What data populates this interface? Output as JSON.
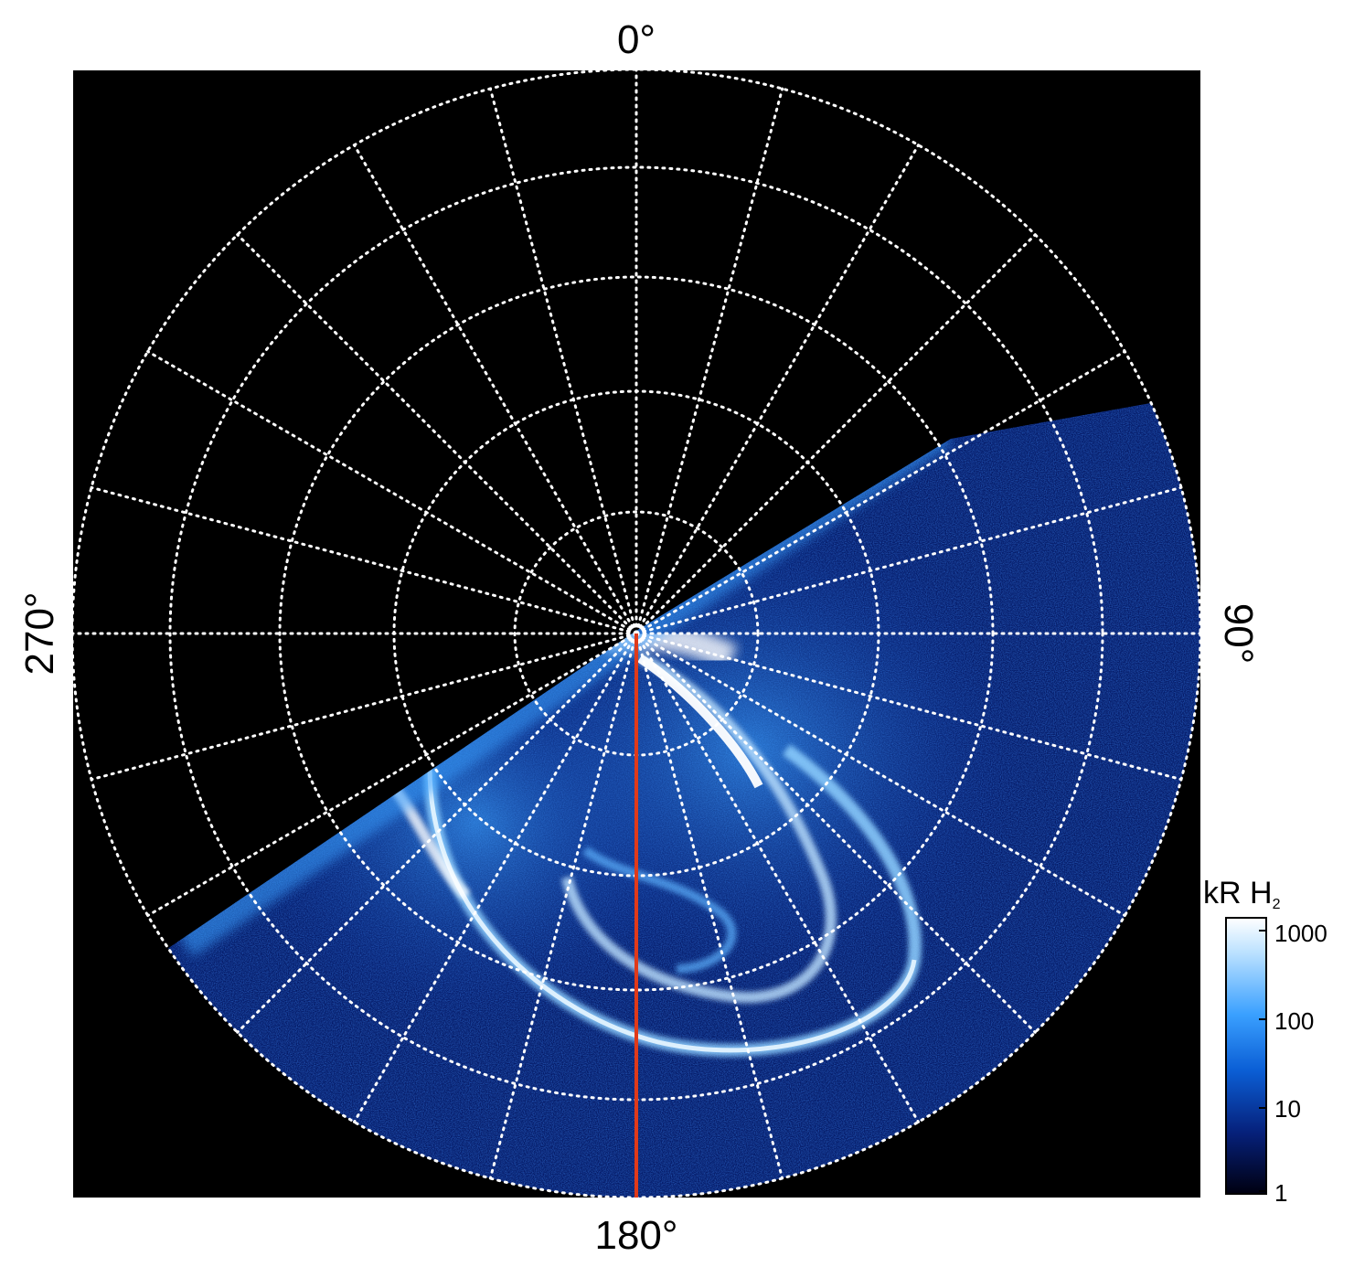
{
  "figure": {
    "labels": {
      "top": "0°",
      "bottom": "180°",
      "left": "270°",
      "right": "90°"
    },
    "colorbar": {
      "title": "kR H",
      "title_subscript": "2",
      "scale": "log",
      "ticks": [
        "1000",
        "100",
        "10",
        "1"
      ],
      "colors": [
        "#ffffff",
        "#bfe3ff",
        "#3aa0ff",
        "#0b5fd6",
        "#06207a",
        "#000010"
      ]
    },
    "grid": {
      "style": "dotted",
      "color": "#ffffff",
      "meridian_step_deg": 15,
      "circles": 5
    },
    "colors": {
      "background": "#000000",
      "central_line": "#e03a1a",
      "aurora_bright": "#ffffff",
      "aurora_mid": "#2f8fff",
      "aurora_dim": "#0a2f9a"
    }
  }
}
